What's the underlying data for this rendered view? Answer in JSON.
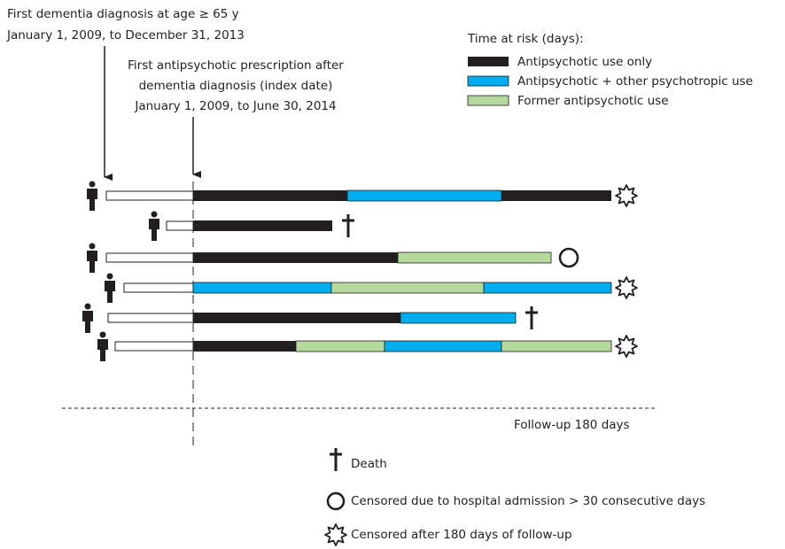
{
  "header": {
    "dementia": [
      "First dementia diagnosis at age ≥ 65 y",
      "January 1, 2009, to December 31, 2013"
    ],
    "index_date": [
      "First antipsychotic prescription after",
      "dementia diagnosis (index date)",
      "January 1, 2009, to June 30, 2014"
    ]
  },
  "legend": {
    "title": "Time at risk (days):",
    "items": [
      "Antipsychotic use only",
      "Antipsychotic + other psychotropic use",
      "Former antipsychotic use"
    ]
  },
  "follow_up": "Follow-up 180 days",
  "symbols": [
    "Death",
    "Censored due to hospital admission > 30 consecutive days",
    "Censored after 180 days of follow-up"
  ]
}
